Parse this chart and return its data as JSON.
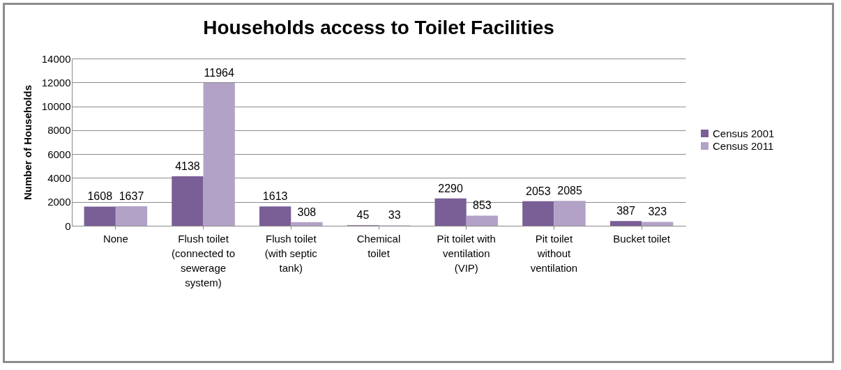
{
  "chart_data": {
    "type": "bar",
    "title": "Households access to Toilet Facilities",
    "ylabel": "Number of Households",
    "categories": [
      "None",
      "Flush toilet\n(connected to\nsewerage\nsystem)",
      "Flush toilet\n(with septic\ntank)",
      "Chemical\ntoilet",
      "Pit toilet with\nventilation\n(VIP)",
      "Pit toilet\nwithout\nventilation",
      "Bucket toilet"
    ],
    "series": [
      {
        "name": "Census 2001",
        "color": "#7a5e96",
        "values": [
          1608,
          4138,
          1613,
          45,
          2290,
          2053,
          387
        ]
      },
      {
        "name": "Census 2011",
        "color": "#b3a2c7",
        "values": [
          1637,
          11964,
          308,
          33,
          853,
          2085,
          323
        ]
      }
    ],
    "ylim": [
      0,
      14000
    ],
    "yticks": [
      0,
      2000,
      4000,
      6000,
      8000,
      10000,
      12000,
      14000
    ],
    "grid": "y",
    "legend": "right",
    "data_labels": true
  }
}
